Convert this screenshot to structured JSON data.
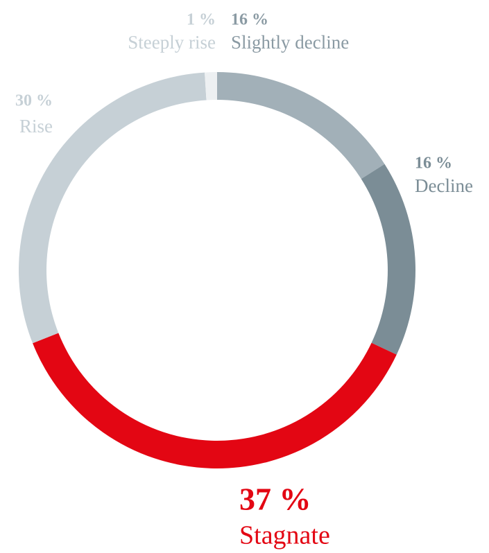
{
  "chart_data": {
    "type": "donut",
    "categories": [
      "Slightly decline",
      "Decline",
      "Stagnate",
      "Rise",
      "Steeply rise"
    ],
    "values": [
      16,
      16,
      37,
      30,
      1
    ],
    "value_labels": [
      "16 %",
      "16 %",
      "37 %",
      "30 %",
      "1 %"
    ],
    "colors": [
      "#a2b0b8",
      "#7b8d96",
      "#e30613",
      "#c6d0d6",
      "#edf0f2"
    ]
  }
}
